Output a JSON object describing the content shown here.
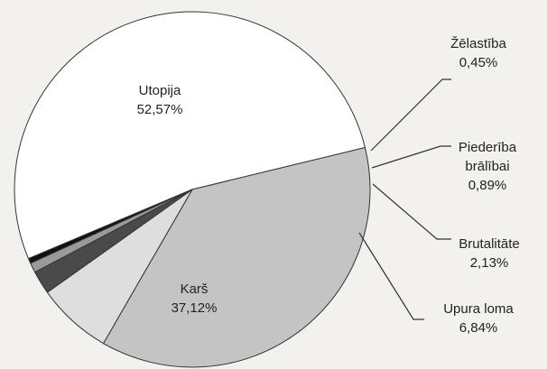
{
  "chart_data": {
    "type": "pie",
    "categories": [
      "Utopija",
      "Karš",
      "Upura loma",
      "Brutalitāte",
      "Piederība brālībai",
      "Žēlastība"
    ],
    "values": [
      52.57,
      37.12,
      6.84,
      2.13,
      0.89,
      0.45
    ],
    "value_labels": [
      "52,57%",
      "37,12%",
      "6,84%",
      "2,13%",
      "0,89%",
      "0,45%"
    ],
    "colors": [
      "#ffffff",
      "#c4c4c4",
      "#dedede",
      "#4a4a4a",
      "#9a9a9a",
      "#111111"
    ]
  }
}
